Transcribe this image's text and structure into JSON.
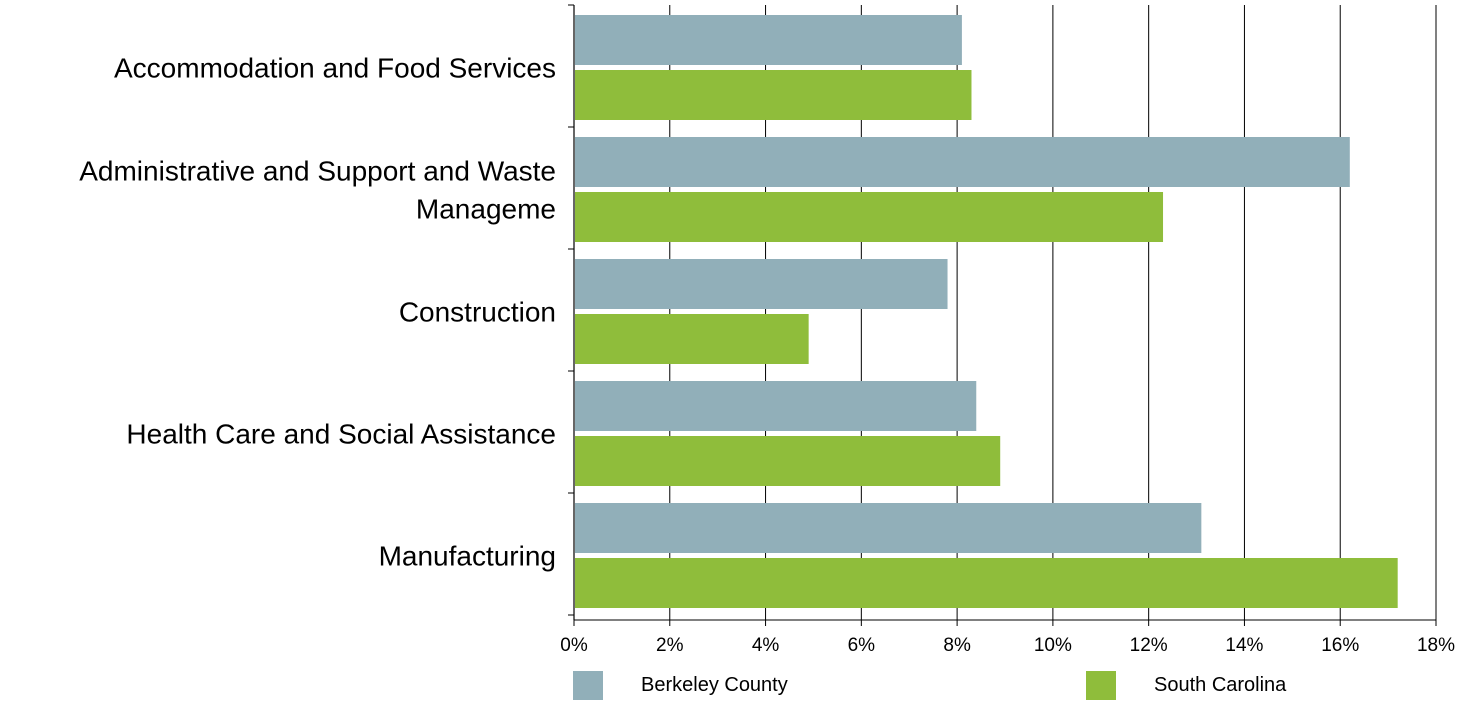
{
  "chart_data": {
    "type": "bar",
    "orientation": "horizontal",
    "categories": [
      [
        "Accommodation and Food Services"
      ],
      [
        "Administrative and Support and Waste",
        "Manageme"
      ],
      [
        "Construction"
      ],
      [
        "Health Care and Social Assistance"
      ],
      [
        "Manufacturing"
      ]
    ],
    "series": [
      {
        "name": "Berkeley County",
        "color": "#91AFB9",
        "values": [
          8.1,
          16.2,
          7.8,
          8.4,
          13.1
        ]
      },
      {
        "name": "South Carolina",
        "color": "#8FBD3B",
        "values": [
          8.3,
          12.3,
          4.9,
          8.9,
          17.2
        ]
      }
    ],
    "xlim": [
      0,
      18
    ],
    "xticks": [
      0,
      2,
      4,
      6,
      8,
      10,
      12,
      14,
      16,
      18
    ],
    "tick_suffix": "%",
    "grid": "vertical",
    "legend_position": "bottom"
  }
}
